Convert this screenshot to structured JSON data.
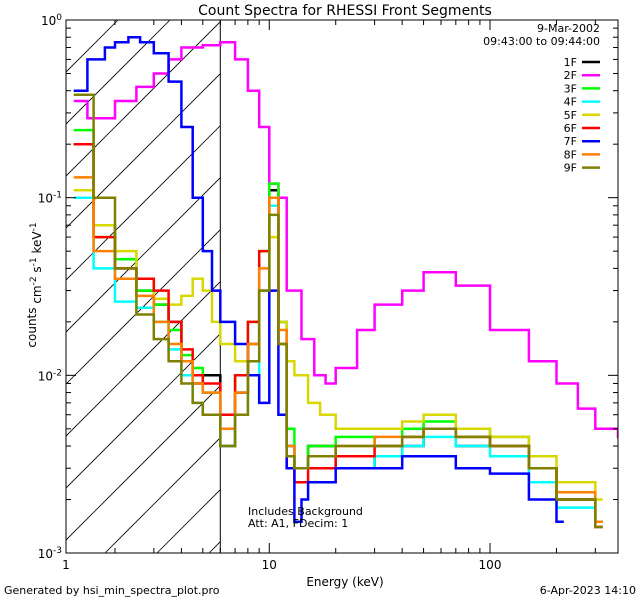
{
  "chart_data": {
    "type": "line",
    "title": "Count Spectra for RHESSI Front Segments",
    "xlabel": "Energy (keV)",
    "ylabel": "counts cm^-2 s^-1 keV^-1",
    "x_scale": "log",
    "y_scale": "log",
    "xlim": [
      1.2,
      380
    ],
    "ylim": [
      0.001,
      1.0
    ],
    "x_ticks": [
      {
        "value": 1,
        "label": "1"
      },
      {
        "value": 10,
        "label": "10"
      },
      {
        "value": 100,
        "label": "100"
      }
    ],
    "y_ticks": [
      {
        "value": 1,
        "label": "10^0"
      },
      {
        "value": 0.1,
        "label": "10^-1"
      },
      {
        "value": 0.01,
        "label": "10^-2"
      },
      {
        "value": 0.001,
        "label": "10^-3"
      }
    ],
    "annotations": {
      "date": "9-Mar-2002",
      "time_range": "09:43:00 to 09:44:00",
      "background_note": "Includes Background",
      "atten_note": "Att: A1, FDecim: 1",
      "vertical_line_energy": 6.0
    },
    "legend_position": "top-right",
    "series": [
      {
        "name": "1F",
        "color": "#000000",
        "x": [
          1.3,
          1.6,
          2.0,
          2.5,
          3.0,
          3.5,
          4.0,
          4.5,
          5.0,
          6.0,
          7.0,
          8.0,
          9.0,
          10.0,
          11.0,
          12.0,
          13.0,
          15.0,
          20.0,
          30.0,
          40.0,
          50.0,
          70.0,
          100.0,
          150.0,
          200.0,
          300.0
        ],
        "y": [
          0.2,
          0.07,
          0.04,
          0.03,
          0.025,
          0.02,
          0.012,
          0.009,
          0.01,
          0.004,
          0.008,
          0.015,
          0.03,
          0.11,
          0.02,
          0.004,
          0.003,
          0.004,
          0.003,
          0.0035,
          0.004,
          0.005,
          0.004,
          0.004,
          0.003,
          0.002,
          0.0015
        ]
      },
      {
        "name": "2F",
        "color": "#ff00ff",
        "x": [
          1.3,
          1.5,
          2.0,
          2.5,
          3.0,
          3.5,
          4.0,
          5.0,
          6.0,
          7.0,
          8.0,
          9.0,
          10.0,
          11.0,
          12.0,
          14.0,
          16.0,
          18.0,
          20.0,
          25.0,
          30.0,
          40.0,
          50.0,
          70.0,
          100.0,
          150.0,
          200.0,
          250.0,
          300.0,
          380.0
        ],
        "y": [
          0.35,
          0.28,
          0.35,
          0.42,
          0.5,
          0.6,
          0.7,
          0.72,
          0.75,
          0.6,
          0.4,
          0.25,
          0.12,
          0.1,
          0.03,
          0.016,
          0.01,
          0.009,
          0.011,
          0.018,
          0.025,
          0.03,
          0.038,
          0.032,
          0.018,
          0.012,
          0.009,
          0.0065,
          0.005,
          0.0045
        ]
      },
      {
        "name": "3F",
        "color": "#00ff00",
        "x": [
          1.3,
          1.6,
          2.0,
          2.5,
          3.0,
          3.5,
          4.0,
          4.5,
          5.0,
          6.0,
          7.0,
          8.0,
          9.0,
          10.0,
          11.0,
          12.0,
          13.0,
          15.0,
          20.0,
          30.0,
          40.0,
          50.0,
          70.0,
          100.0,
          150.0,
          200.0,
          300.0
        ],
        "y": [
          0.24,
          0.06,
          0.045,
          0.03,
          0.025,
          0.018,
          0.013,
          0.011,
          0.008,
          0.006,
          0.01,
          0.02,
          0.05,
          0.12,
          0.02,
          0.005,
          0.003,
          0.004,
          0.0045,
          0.004,
          0.005,
          0.0055,
          0.005,
          0.0045,
          0.003,
          0.002,
          0.0015
        ]
      },
      {
        "name": "4F",
        "color": "#00ffff",
        "x": [
          1.3,
          1.6,
          2.0,
          2.5,
          3.0,
          3.5,
          4.0,
          4.5,
          5.0,
          6.0,
          7.0,
          8.0,
          9.0,
          10.0,
          11.0,
          12.0,
          13.0,
          15.0,
          20.0,
          30.0,
          40.0,
          50.0,
          70.0,
          100.0,
          150.0,
          200.0,
          300.0
        ],
        "y": [
          0.1,
          0.04,
          0.026,
          0.024,
          0.02,
          0.014,
          0.01,
          0.007,
          0.006,
          0.004,
          0.006,
          0.01,
          0.03,
          0.09,
          0.02,
          0.004,
          0.003,
          0.0035,
          0.003,
          0.0035,
          0.004,
          0.0045,
          0.004,
          0.0035,
          0.0025,
          0.0018,
          0.0015
        ]
      },
      {
        "name": "5F",
        "color": "#d8d800",
        "x": [
          1.3,
          1.6,
          2.0,
          2.5,
          3.0,
          3.5,
          4.0,
          4.5,
          5.0,
          5.5,
          6.0,
          7.0,
          8.0,
          9.0,
          10.0,
          11.0,
          12.0,
          13.0,
          15.0,
          17.0,
          20.0,
          30.0,
          40.0,
          50.0,
          70.0,
          100.0,
          150.0,
          200.0,
          300.0
        ],
        "y": [
          0.11,
          0.07,
          0.05,
          0.035,
          0.027,
          0.025,
          0.028,
          0.035,
          0.03,
          0.02,
          0.015,
          0.012,
          0.015,
          0.03,
          0.06,
          0.02,
          0.012,
          0.01,
          0.007,
          0.006,
          0.005,
          0.005,
          0.0055,
          0.006,
          0.005,
          0.0045,
          0.0035,
          0.0025,
          0.002
        ]
      },
      {
        "name": "6F",
        "color": "#ff0000",
        "x": [
          1.3,
          1.6,
          2.0,
          2.5,
          3.0,
          3.5,
          4.0,
          4.5,
          5.0,
          6.0,
          7.0,
          8.0,
          9.0,
          10.0,
          11.0,
          12.0,
          13.0,
          15.0,
          20.0,
          30.0,
          40.0,
          50.0,
          70.0,
          100.0,
          150.0,
          200.0,
          300.0
        ],
        "y": [
          0.2,
          0.06,
          0.04,
          0.035,
          0.03,
          0.02,
          0.014,
          0.01,
          0.009,
          0.006,
          0.01,
          0.02,
          0.05,
          0.1,
          0.015,
          0.003,
          0.0025,
          0.003,
          0.0035,
          0.004,
          0.0045,
          0.005,
          0.0045,
          0.004,
          0.003,
          0.002,
          0.0014
        ]
      },
      {
        "name": "7F",
        "color": "#0000ff",
        "x": [
          1.3,
          1.5,
          1.8,
          2.0,
          2.3,
          2.6,
          3.0,
          3.5,
          4.0,
          4.5,
          5.0,
          5.5,
          6.0,
          7.0,
          8.0,
          9.0,
          10.0,
          11.0,
          12.0,
          13.0,
          14.0,
          15.0,
          20.0,
          30.0,
          40.0,
          50.0,
          70.0,
          100.0,
          150.0,
          200.0
        ],
        "y": [
          0.4,
          0.6,
          0.7,
          0.75,
          0.8,
          0.75,
          0.65,
          0.45,
          0.25,
          0.1,
          0.05,
          0.03,
          0.02,
          0.015,
          0.01,
          0.007,
          0.03,
          0.006,
          0.003,
          0.0015,
          0.002,
          0.0025,
          0.003,
          0.003,
          0.0035,
          0.0035,
          0.003,
          0.0028,
          0.002,
          0.0015
        ]
      },
      {
        "name": "8F",
        "color": "#ff8000",
        "x": [
          1.3,
          1.6,
          2.0,
          2.5,
          3.0,
          3.5,
          4.0,
          4.5,
          5.0,
          6.0,
          7.0,
          8.0,
          9.0,
          10.0,
          11.0,
          12.0,
          13.0,
          15.0,
          20.0,
          30.0,
          40.0,
          50.0,
          70.0,
          100.0,
          150.0,
          200.0,
          300.0
        ],
        "y": [
          0.13,
          0.05,
          0.035,
          0.028,
          0.02,
          0.015,
          0.012,
          0.009,
          0.008,
          0.005,
          0.008,
          0.015,
          0.04,
          0.1,
          0.018,
          0.004,
          0.003,
          0.0035,
          0.004,
          0.0045,
          0.0045,
          0.005,
          0.0045,
          0.004,
          0.003,
          0.0022,
          0.0015
        ]
      },
      {
        "name": "9F",
        "color": "#808000",
        "x": [
          1.3,
          1.6,
          2.0,
          2.5,
          3.0,
          3.5,
          4.0,
          4.5,
          5.0,
          6.0,
          7.0,
          8.0,
          9.0,
          10.0,
          11.0,
          12.0,
          13.0,
          15.0,
          20.0,
          30.0,
          40.0,
          50.0,
          70.0,
          100.0,
          150.0,
          200.0,
          300.0
        ],
        "y": [
          0.38,
          0.1,
          0.04,
          0.022,
          0.016,
          0.012,
          0.009,
          0.007,
          0.006,
          0.004,
          0.006,
          0.012,
          0.03,
          0.08,
          0.015,
          0.0035,
          0.003,
          0.0035,
          0.004,
          0.004,
          0.0045,
          0.005,
          0.0045,
          0.004,
          0.003,
          0.002,
          0.0014
        ]
      }
    ]
  },
  "footer": {
    "left": "Generated by hsi_min_spectra_plot.pro",
    "right": "6-Apr-2023 14:10"
  }
}
